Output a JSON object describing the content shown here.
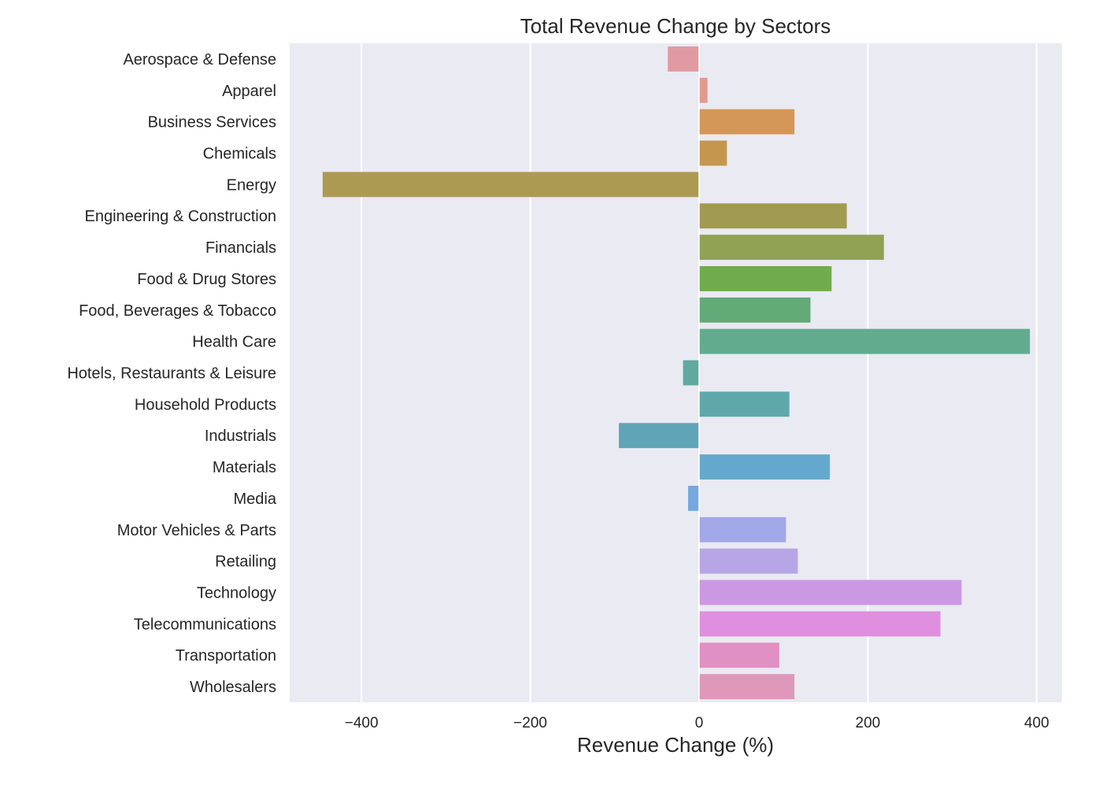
{
  "chart_data": {
    "type": "bar",
    "orientation": "horizontal",
    "title": "Total Revenue Change by Sectors",
    "xlabel": "Revenue Change (%)",
    "ylabel": "",
    "xlim": [
      -485,
      430
    ],
    "xticks": [
      -400,
      -200,
      0,
      200,
      400
    ],
    "xtick_labels": [
      "−400",
      "−200",
      "0",
      "200",
      "400"
    ],
    "grid": true,
    "categories": [
      "Aerospace & Defense",
      "Apparel",
      "Business Services",
      "Chemicals",
      "Energy",
      "Engineering & Construction",
      "Financials",
      "Food & Drug Stores",
      "Food, Beverages & Tobacco",
      "Health Care",
      "Hotels, Restaurants & Leisure",
      "Household Products",
      "Industrials",
      "Materials",
      "Media",
      "Motor Vehicles & Parts",
      "Retailing",
      "Technology",
      "Telecommunications",
      "Transportation",
      "Wholesalers"
    ],
    "values": [
      -37,
      10,
      113,
      33,
      -446,
      175,
      219,
      157,
      132,
      392,
      -19,
      107,
      -95,
      155,
      -13,
      103,
      117,
      311,
      286,
      95,
      113
    ],
    "colors": [
      "#e29aa2",
      "#e09b8c",
      "#d59757",
      "#c4974f",
      "#ad9a52",
      "#a19a52",
      "#90a254",
      "#70ac4c",
      "#62aa78",
      "#63ab8f",
      "#5fa99e",
      "#5ea8aa",
      "#5fa5b7",
      "#64a9cd",
      "#75a8e0",
      "#a2a8e8",
      "#b7a6e6",
      "#cb98e3",
      "#df8ee0",
      "#e090c2",
      "#df98b9"
    ]
  }
}
